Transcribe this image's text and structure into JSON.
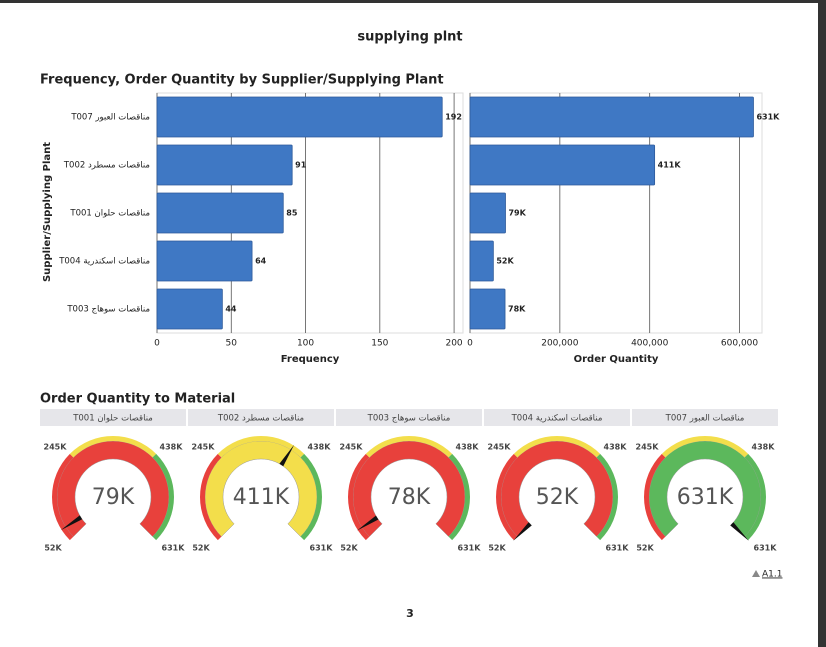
{
  "page": {
    "title": "supplying plnt",
    "page_number": "3",
    "footnote": "A1.1"
  },
  "chart_data": [
    {
      "type": "bar",
      "orientation": "horizontal",
      "title": "Frequency, Order Quantity by Supplier/Supplying Plant",
      "y_label": "Supplier/Supplying Plant",
      "categories": [
        "T007 مناقصات العبور",
        "T002 مناقصات مسطرد",
        "T001 مناقصات حلوان",
        "T004 مناقصات اسكندرية",
        "T003 مناقصات سوهاج"
      ],
      "grid": true,
      "series": [
        {
          "name": "Frequency",
          "color": "#3f78c4",
          "values": [
            192,
            91,
            85,
            64,
            44
          ],
          "xlim": [
            0,
            206
          ],
          "xticks": [
            0,
            50,
            100,
            150,
            200
          ]
        },
        {
          "name": "Order Quantity",
          "color": "#3f78c4",
          "values": [
            631000,
            411000,
            79000,
            52000,
            78000
          ],
          "value_labels": [
            "631K",
            "411K",
            "79K",
            "52K",
            "78K"
          ],
          "xlim": [
            0,
            650000
          ],
          "xticks": [
            0,
            {
              "value": 200000,
              "label": "200,000"
            },
            {
              "value": 400000,
              "label": "400,000"
            },
            {
              "value": 600000,
              "label": "600,000"
            }
          ]
        }
      ]
    },
    {
      "type": "gauge",
      "title": "Order Quantity to Material",
      "scale": [
        {
          "value": 52000,
          "label": "52K"
        },
        {
          "value": 245000,
          "label": "245K"
        },
        {
          "value": 438000,
          "label": "438K"
        },
        {
          "value": 631000,
          "label": "631K"
        }
      ],
      "band_colors": [
        "#e8413c",
        "#f3de4b",
        "#5cb85c"
      ],
      "gauges": [
        {
          "label": "T001 مناقصات حلوان",
          "value": 79000,
          "value_label": "79K"
        },
        {
          "label": "T002 مناقصات مسطرد",
          "value": 411000,
          "value_label": "411K"
        },
        {
          "label": "T003 مناقصات سوهاج",
          "value": 78000,
          "value_label": "78K"
        },
        {
          "label": "T004 مناقصات اسكندرية",
          "value": 52000,
          "value_label": "52K"
        },
        {
          "label": "T007 مناقصات العبور",
          "value": 631000,
          "value_label": "631K"
        }
      ]
    }
  ]
}
